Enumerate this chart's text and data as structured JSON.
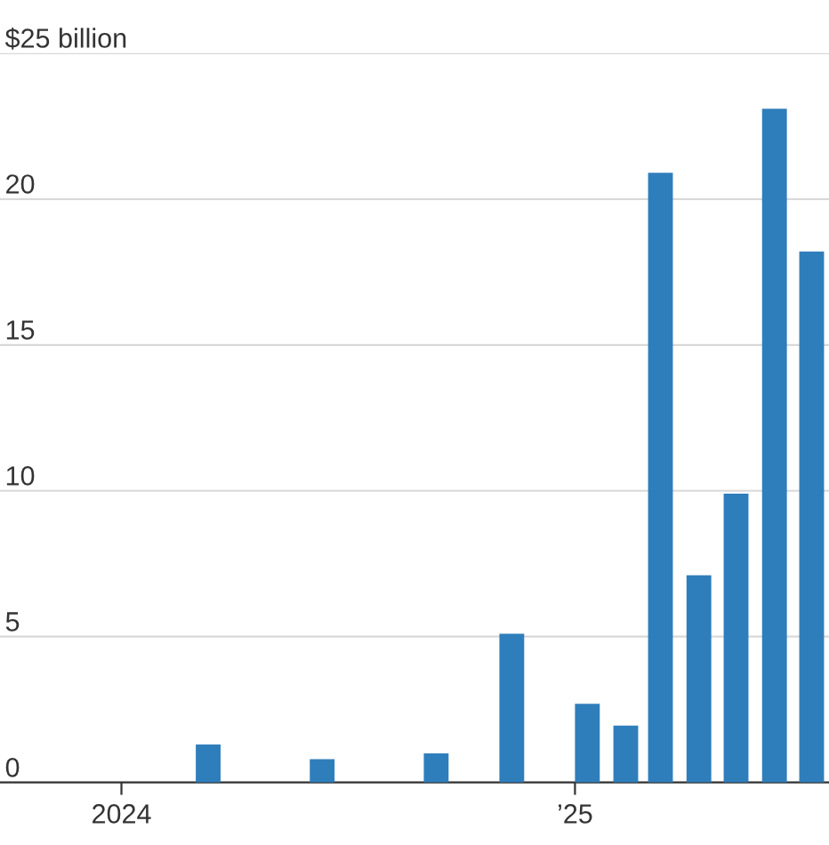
{
  "chart_data": {
    "type": "bar",
    "color": "#2f7ebc",
    "x": [
      "2024-03-11",
      "2024-06-11",
      "2024-09-11",
      "2024-11-11",
      "2025-01-11",
      "2025-02-11",
      "2025-03-11",
      "2025-04-11",
      "2025-05-11",
      "2025-06-11",
      "2025-07-11"
    ],
    "values": [
      1.3,
      0.8,
      1.0,
      5.1,
      2.7,
      1.95,
      20.9,
      7.1,
      9.9,
      23.1,
      18.2
    ],
    "xlim": [
      "2023-09-25",
      "2025-07-25"
    ],
    "xticks": [
      {
        "value": "2024-01",
        "label": "2024"
      },
      {
        "value": "2025-01",
        "label": "’25"
      }
    ],
    "ylim": [
      0,
      25
    ],
    "yticks": [
      0,
      5,
      10,
      15,
      20,
      {
        "value": 25,
        "label": "$25 billion"
      }
    ],
    "grid": "y"
  }
}
